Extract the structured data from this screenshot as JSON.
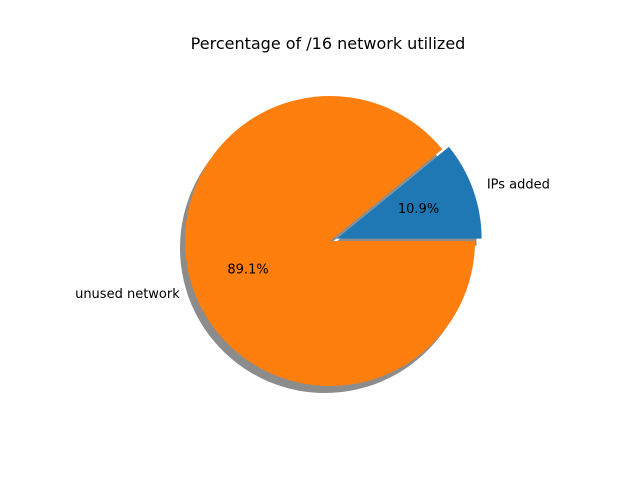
{
  "chart_data": {
    "type": "pie",
    "title": "Percentage of /16 network utilized",
    "slices": [
      {
        "label": "IPs added",
        "value": 10.9,
        "pct_label": "10.9%",
        "color": "#1f77b4",
        "exploded": true
      },
      {
        "label": "unused network",
        "value": 89.1,
        "pct_label": "89.1%",
        "color": "#ff7f0e",
        "exploded": false
      }
    ],
    "start_angle_deg": 0,
    "direction": "counterclockwise",
    "shadow": true,
    "shadow_color": "#8c8c8c"
  }
}
